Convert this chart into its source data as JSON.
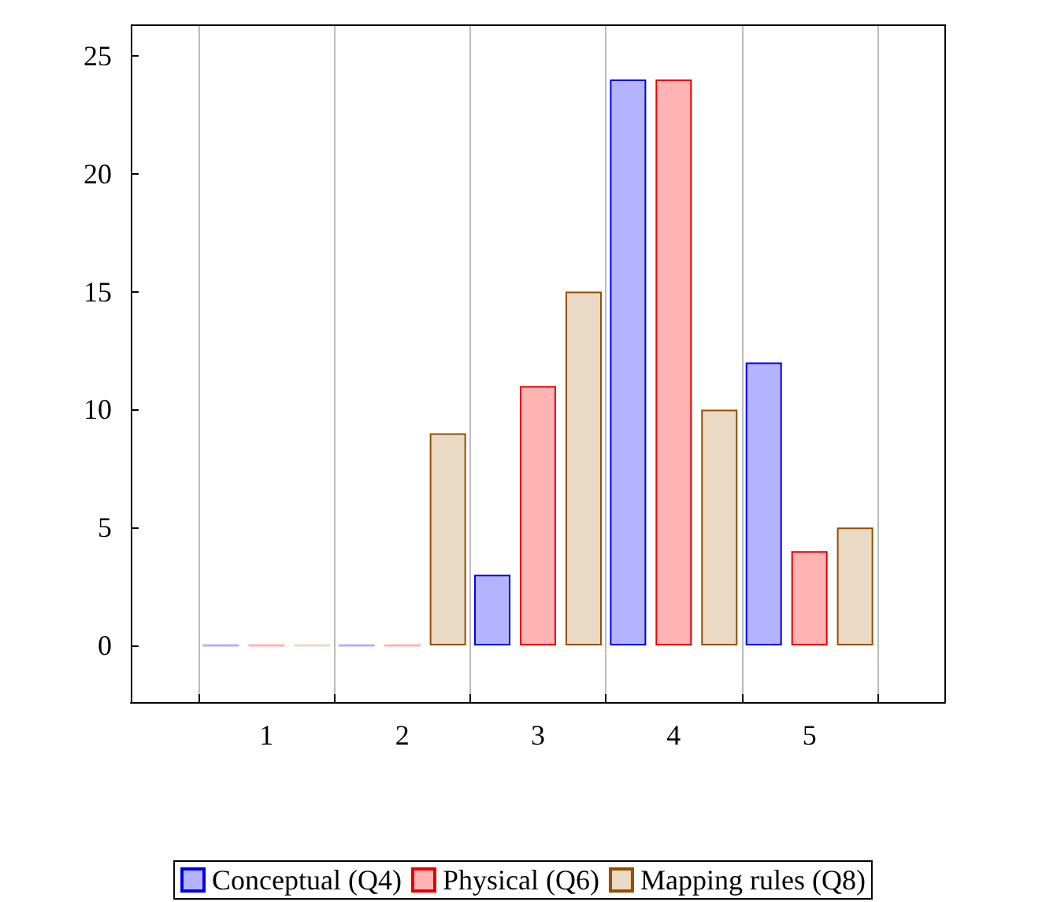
{
  "chart_data": {
    "type": "bar",
    "x": [
      1,
      2,
      3,
      4,
      5
    ],
    "series": [
      {
        "name": "Conceptual (Q4)",
        "color": "#b3b3ff",
        "values": [
          0,
          0,
          3,
          24,
          12
        ]
      },
      {
        "name": "Physical (Q6)",
        "color": "#ffb3b3",
        "values": [
          0,
          0,
          11,
          24,
          4
        ]
      },
      {
        "name": "Mapping rules (Q8)",
        "color": "#ead9c5",
        "values": [
          0,
          9,
          15,
          10,
          5
        ]
      }
    ],
    "xlim": [
      0,
      6
    ],
    "xticks": [
      {
        "value": 0.5,
        "label": null
      },
      1,
      {
        "value": 1.5,
        "label": null
      },
      2,
      {
        "value": 2.5,
        "label": null
      },
      3,
      {
        "value": 3.5,
        "label": null
      },
      4,
      {
        "value": 4.5,
        "label": null
      },
      5,
      {
        "value": 5.5,
        "label": null
      }
    ],
    "ylim": [
      -2.4,
      26.3
    ],
    "yticks": [
      0,
      5,
      10,
      15,
      20,
      25
    ],
    "grid": "x",
    "legend": "bottom"
  }
}
